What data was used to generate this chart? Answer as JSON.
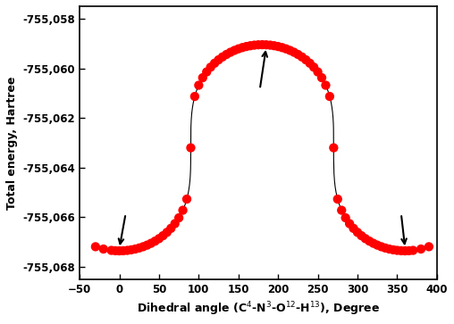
{
  "title": "",
  "xlabel_latex": "Dihedral angle (C$^4$-N$^3$-O$^{12}$-H$^{13}$), Degree",
  "ylabel": "Total energy, Hartree",
  "xlim": [
    -50,
    400
  ],
  "ylim": [
    -755068.5,
    -755057.5
  ],
  "yticks": [
    -755068,
    -755066,
    -755064,
    -755062,
    -755060,
    -755058
  ],
  "xticks": [
    -50,
    0,
    50,
    100,
    150,
    200,
    250,
    300,
    350,
    400
  ],
  "dot_color": "red",
  "dot_size": 55,
  "line_color": "black",
  "line_width": 0.8,
  "bg_color": "white",
  "E_min": -755067.35,
  "E_max": -755059.05,
  "sharpness": 3.5,
  "arrow_color": "black",
  "arrow_lw": 1.5
}
